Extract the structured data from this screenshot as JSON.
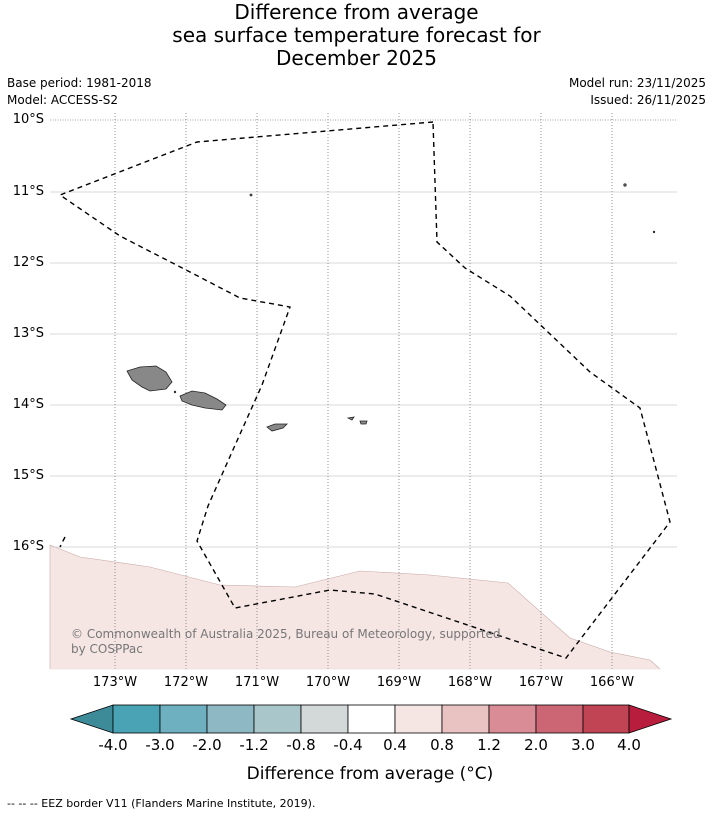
{
  "title": {
    "line1": "Difference from average",
    "line2": "sea surface temperature forecast for",
    "line3": "December 2025"
  },
  "meta": {
    "base_period": "Base period: 1981-2018",
    "model": "Model: ACCESS-S2",
    "model_run": "Model run: 23/11/2025",
    "issued": "Issued: 26/11/2025"
  },
  "map": {
    "lat_labels": [
      "10°S",
      "11°S",
      "12°S",
      "13°S",
      "14°S",
      "15°S",
      "16°S"
    ],
    "lon_labels": [
      "173°W",
      "172°W",
      "171°W",
      "170°W",
      "169°W",
      "168°W",
      "167°W",
      "166°W"
    ],
    "copyright": "© Commonwealth of Australia 2025, Bureau of Meteorology, supported by COSPPac",
    "land_color": "#888888",
    "anomaly_color": "#f5e6e4"
  },
  "colorbar": {
    "title": "Difference from average (°C)",
    "ticks": [
      "-4.0",
      "-3.0",
      "-2.0",
      "-1.2",
      "-0.8",
      "-0.4",
      "0.4",
      "0.8",
      "1.2",
      "2.0",
      "3.0",
      "4.0"
    ],
    "colors": [
      "#3d8a99",
      "#4aa3b5",
      "#6fb0c0",
      "#8db8c4",
      "#a9c6cb",
      "#d3d8d8",
      "#ffffff",
      "#f5e6e4",
      "#e8c3c1",
      "#d98c95",
      "#cd6674",
      "#c04454",
      "#b81d3d"
    ]
  },
  "footer": "--  --  -- EEZ border V11 (Flanders Marine Institute, 2019)."
}
